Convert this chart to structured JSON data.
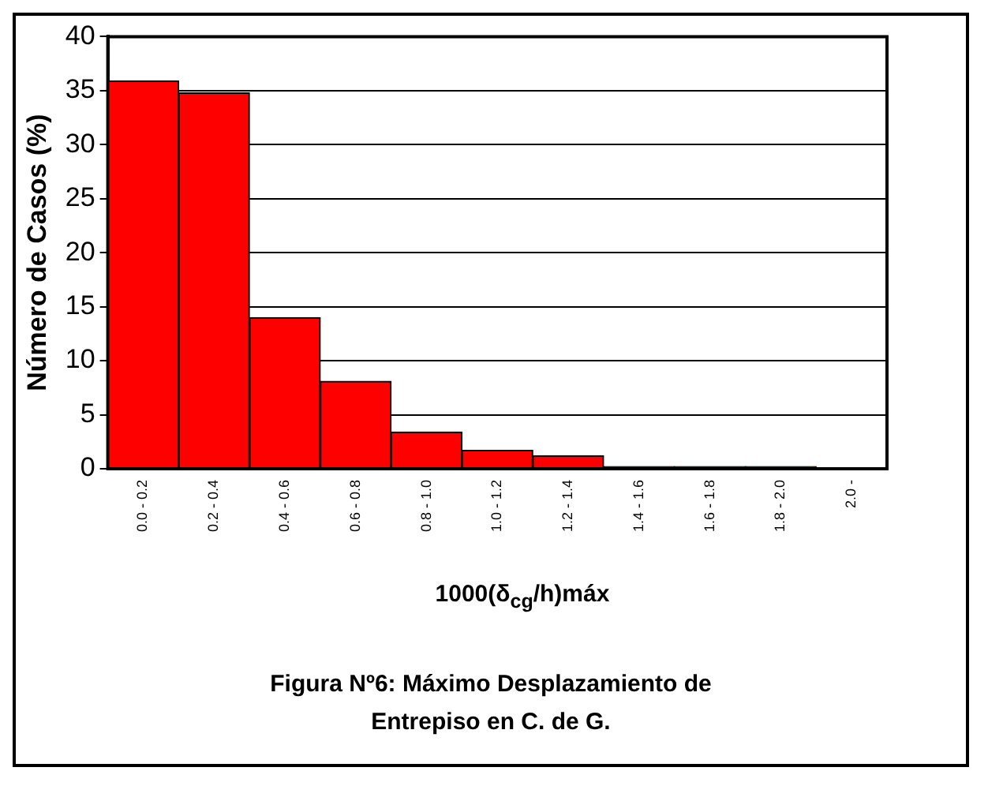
{
  "chart_data": {
    "type": "bar",
    "title": "Figura Nº6: Máximo Desplazamiento de Entrepiso en C. de G.",
    "xlabel": "1000(δ$_{cg}$/h)máx",
    "ylabel": "Número de Casos (%)",
    "categories": [
      "0.0 - 0.2",
      "0.2 - 0.4",
      "0.4 - 0.6",
      "0.6 - 0.8",
      "0.8 - 1.0",
      "1.0 - 1.2",
      "1.2 - 1.4",
      "1.4 - 1.6",
      "1.6 - 1.8",
      "1.8 - 2.0",
      "2.0 -"
    ],
    "values": [
      35.9,
      34.8,
      14.0,
      8.1,
      3.4,
      1.7,
      1.2,
      0.2,
      0.2,
      0.2,
      0.0
    ],
    "color": "#ff0000",
    "ylim": [
      0,
      40
    ],
    "yticks": [
      0,
      5,
      10,
      15,
      20,
      25,
      30,
      35,
      40
    ],
    "grid": "y",
    "legend": false
  }
}
